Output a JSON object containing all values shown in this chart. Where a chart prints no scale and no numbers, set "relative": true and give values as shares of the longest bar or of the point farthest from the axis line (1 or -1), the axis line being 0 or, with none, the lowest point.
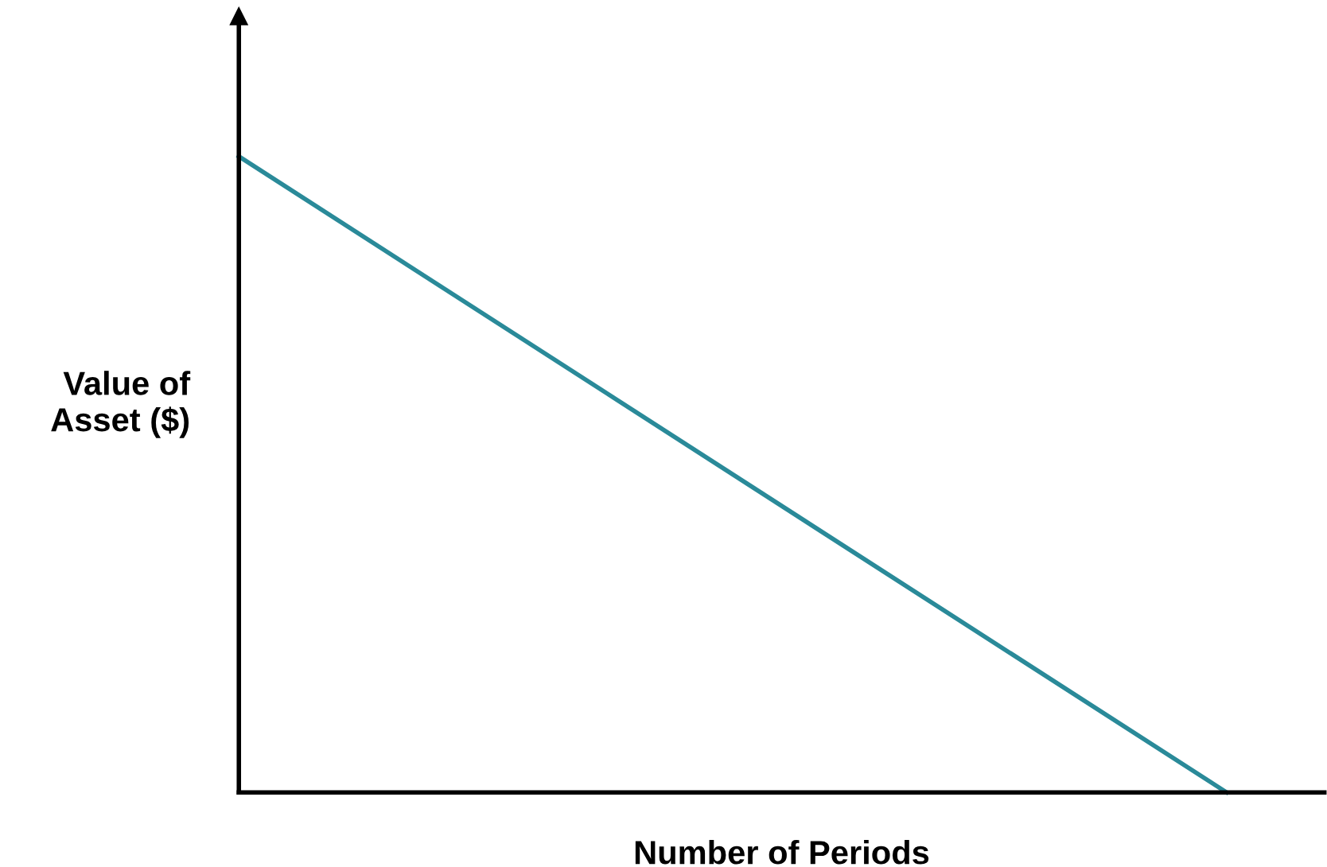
{
  "chart_data": {
    "type": "line",
    "xlabel": "Number of Periods",
    "ylabel": "Value of\nAsset ($)",
    "categories": [
      null,
      null
    ],
    "series": [
      {
        "color": "#2a8a99",
        "values": [
          1,
          0
        ]
      }
    ],
    "relative": true,
    "grid": false,
    "marker": "none",
    "line_style": "solid"
  }
}
